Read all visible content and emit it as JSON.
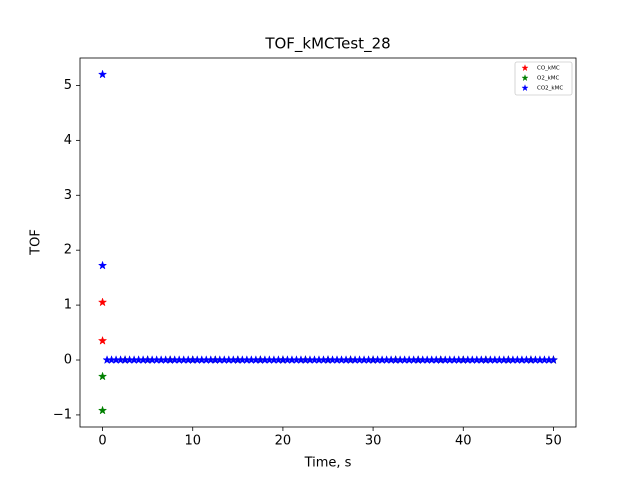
{
  "chart_data": {
    "type": "scatter",
    "title": "TOF_kMCTest_28",
    "x_label": "Time, s",
    "y_label": "TOF",
    "xlim": [
      -2.5,
      52.5
    ],
    "ylim": [
      -1.22,
      5.5
    ],
    "xticks": [
      0,
      10,
      20,
      30,
      40,
      50
    ],
    "yticks": [
      {
        "value": -1,
        "label": "−1"
      },
      0,
      1,
      2,
      3,
      4,
      5
    ],
    "legend": "upper right",
    "series": [
      {
        "name": "CO_kMC",
        "color": "#ff0000",
        "x": [
          0,
          0,
          2.5,
          5,
          7.5,
          10,
          12.5,
          15,
          17.5,
          20,
          22.5,
          25,
          27.5,
          30,
          32.5,
          35,
          37.5,
          40,
          42.5,
          45,
          47.5,
          50
        ],
        "values": [
          1.05,
          0.35,
          0,
          0,
          0,
          0,
          0,
          0,
          0,
          0,
          0,
          0,
          0,
          0,
          0,
          0,
          0,
          0,
          0,
          0,
          0,
          0
        ]
      },
      {
        "name": "O2_kMC",
        "color": "#008000",
        "x": [
          0,
          0,
          2.5,
          5,
          7.5,
          10,
          12.5,
          15,
          17.5,
          20,
          22.5,
          25,
          27.5,
          30,
          32.5,
          35,
          37.5,
          40,
          42.5,
          45,
          47.5,
          50
        ],
        "values": [
          -0.3,
          -0.92,
          0,
          0,
          0,
          0,
          0,
          0,
          0,
          0,
          0,
          0,
          0,
          0,
          0,
          0,
          0,
          0,
          0,
          0,
          0,
          0
        ]
      },
      {
        "name": "CO2_kMC",
        "color": "#0000ff",
        "x": [
          0,
          0,
          0.5,
          1,
          1.5,
          2,
          2.5,
          3,
          3.5,
          4,
          4.5,
          5,
          5.5,
          6,
          6.5,
          7,
          7.5,
          8,
          8.5,
          9,
          9.5,
          10,
          10.5,
          11,
          11.5,
          12,
          12.5,
          13,
          13.5,
          14,
          14.5,
          15,
          15.5,
          16,
          16.5,
          17,
          17.5,
          18,
          18.5,
          19,
          19.5,
          20,
          20.5,
          21,
          21.5,
          22,
          22.5,
          23,
          23.5,
          24,
          24.5,
          25,
          25.5,
          26,
          26.5,
          27,
          27.5,
          28,
          28.5,
          29,
          29.5,
          30,
          30.5,
          31,
          31.5,
          32,
          32.5,
          33,
          33.5,
          34,
          34.5,
          35,
          35.5,
          36,
          36.5,
          37,
          37.5,
          38,
          38.5,
          39,
          39.5,
          40,
          40.5,
          41,
          41.5,
          42,
          42.5,
          43,
          43.5,
          44,
          44.5,
          45,
          45.5,
          46,
          46.5,
          47,
          47.5,
          48,
          48.5,
          49,
          49.5,
          50
        ],
        "values": [
          5.2,
          1.72,
          0,
          0,
          0,
          0,
          0,
          0,
          0,
          0,
          0,
          0,
          0,
          0,
          0,
          0,
          0,
          0,
          0,
          0,
          0,
          0,
          0,
          0,
          0,
          0,
          0,
          0,
          0,
          0,
          0,
          0,
          0,
          0,
          0,
          0,
          0,
          0,
          0,
          0,
          0,
          0,
          0,
          0,
          0,
          0,
          0,
          0,
          0,
          0,
          0,
          0,
          0,
          0,
          0,
          0,
          0,
          0,
          0,
          0,
          0,
          0,
          0,
          0,
          0,
          0,
          0,
          0,
          0,
          0,
          0,
          0,
          0,
          0,
          0,
          0,
          0,
          0,
          0,
          0,
          0,
          0,
          0,
          0,
          0,
          0,
          0,
          0,
          0,
          0,
          0,
          0,
          0,
          0,
          0,
          0,
          0,
          0,
          0,
          0,
          0,
          0
        ]
      }
    ]
  }
}
